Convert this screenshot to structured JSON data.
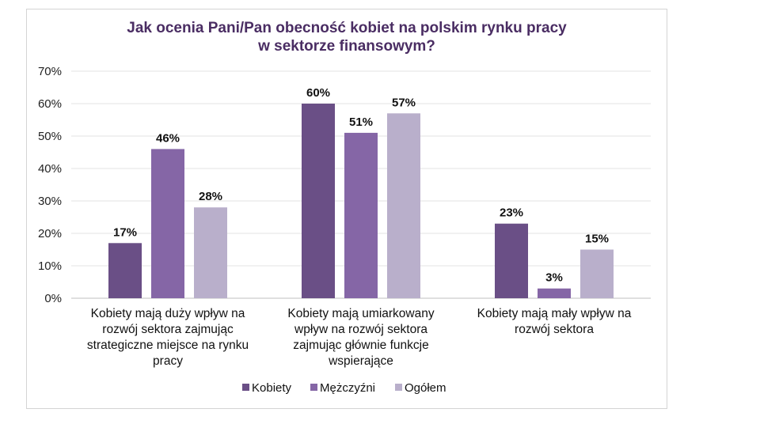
{
  "chart_data": {
    "type": "bar",
    "title_lines": [
      "Jak ocenia Pani/Pan obecność kobiet na polskim rynku pracy",
      "w sektorze finansowym?"
    ],
    "categories": [
      [
        "Kobiety mają duży wpływ na",
        "rozwój sektora zajmując",
        "strategiczne miejsce na rynku",
        "pracy"
      ],
      [
        "Kobiety mają umiarkowany",
        "wpływ na rozwój sektora",
        "zajmując głównie funkcje",
        "wspierające"
      ],
      [
        "Kobiety mają mały wpływ na",
        "rozwój sektora"
      ]
    ],
    "series": [
      {
        "name": "Kobiety",
        "values": [
          17,
          60,
          23
        ],
        "labels": [
          "17%",
          "60%",
          "23%"
        ],
        "color": "#6a4f86"
      },
      {
        "name": "Mężczyźni",
        "values": [
          46,
          51,
          3
        ],
        "labels": [
          "46%",
          "51%",
          "3%"
        ],
        "color": "#8566a6"
      },
      {
        "name": "Ogółem",
        "values": [
          28,
          57,
          15
        ],
        "labels": [
          "28%",
          "57%",
          "15%"
        ],
        "color": "#b9afcb"
      }
    ],
    "yticks": [
      "0%",
      "10%",
      "20%",
      "30%",
      "40%",
      "50%",
      "60%",
      "70%"
    ],
    "ylim": [
      0,
      70
    ],
    "grid": true,
    "legend_position": "bottom"
  }
}
